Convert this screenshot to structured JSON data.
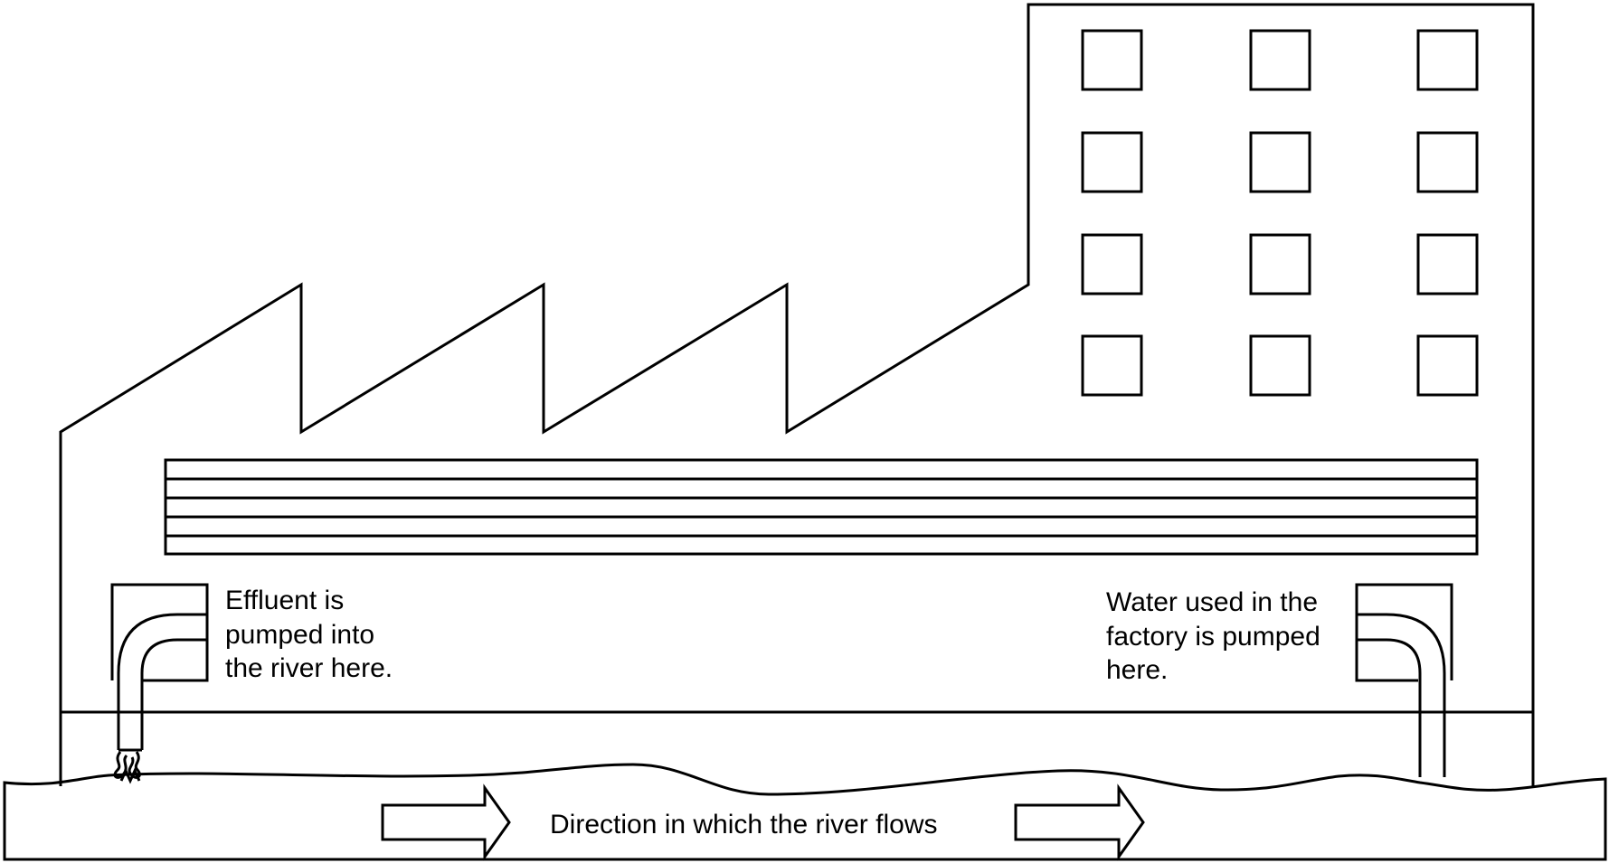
{
  "labels": {
    "effluent": [
      "Effluent is",
      "pumped into",
      "the river here."
    ],
    "intake": [
      "Water used in the",
      "factory is pumped",
      "here."
    ],
    "river_direction": "Direction in which the river flows"
  },
  "colors": {
    "line": "#000000",
    "background": "#ffffff"
  },
  "icons": {
    "arrows": "right-arrow-outline",
    "effluent_splash": "water-splash"
  }
}
